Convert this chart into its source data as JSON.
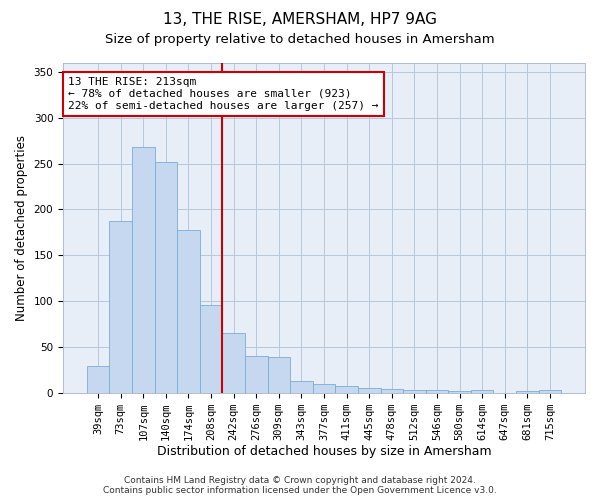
{
  "title": "13, THE RISE, AMERSHAM, HP7 9AG",
  "subtitle": "Size of property relative to detached houses in Amersham",
  "xlabel": "Distribution of detached houses by size in Amersham",
  "ylabel": "Number of detached properties",
  "categories": [
    "39sqm",
    "73sqm",
    "107sqm",
    "140sqm",
    "174sqm",
    "208sqm",
    "242sqm",
    "276sqm",
    "309sqm",
    "343sqm",
    "377sqm",
    "411sqm",
    "445sqm",
    "478sqm",
    "512sqm",
    "546sqm",
    "580sqm",
    "614sqm",
    "647sqm",
    "681sqm",
    "715sqm"
  ],
  "values": [
    30,
    187,
    268,
    252,
    178,
    96,
    65,
    40,
    39,
    13,
    10,
    8,
    6,
    5,
    3,
    3,
    2,
    3,
    0,
    2,
    3
  ],
  "bar_color": "#c5d8f0",
  "bar_edge_color": "#7aadd4",
  "vline_x": 5.5,
  "vline_color": "#cc0000",
  "annotation_text": "13 THE RISE: 213sqm\n← 78% of detached houses are smaller (923)\n22% of semi-detached houses are larger (257) →",
  "annotation_box_color": "#ffffff",
  "annotation_box_edge": "#cc0000",
  "ylim": [
    0,
    360
  ],
  "yticks": [
    0,
    50,
    100,
    150,
    200,
    250,
    300,
    350
  ],
  "plot_bg_color": "#e8eef8",
  "footer": "Contains HM Land Registry data © Crown copyright and database right 2024.\nContains public sector information licensed under the Open Government Licence v3.0.",
  "title_fontsize": 11,
  "subtitle_fontsize": 9.5,
  "xlabel_fontsize": 9,
  "ylabel_fontsize": 8.5,
  "tick_fontsize": 7.5,
  "annotation_fontsize": 8,
  "footer_fontsize": 6.5
}
